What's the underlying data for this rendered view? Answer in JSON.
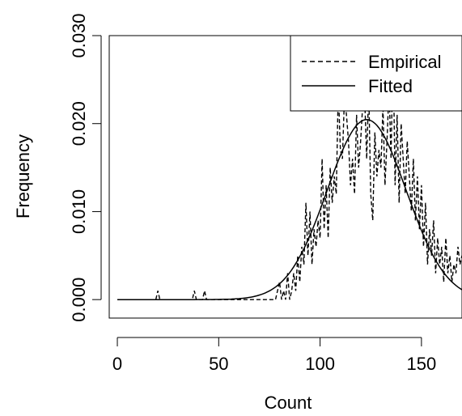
{
  "chart_data": {
    "type": "line",
    "title": "",
    "xlabel": "Count",
    "ylabel": "Frequency",
    "xlim": [
      -4,
      170
    ],
    "ylim": [
      -0.0021,
      0.03
    ],
    "x_ticks": [
      0,
      50,
      100,
      150
    ],
    "x_tick_labels": [
      "0",
      "50",
      "100",
      "150"
    ],
    "y_ticks": [
      0.0,
      0.01,
      0.02,
      0.03
    ],
    "y_tick_labels": [
      "0.000",
      "0.010",
      "0.020",
      "0.030"
    ],
    "grid": false,
    "legend_position": "top-right",
    "series": [
      {
        "name": "Empirical",
        "style": "dashed",
        "x": [
          0,
          19,
          20,
          21,
          37,
          38,
          39,
          42,
          43,
          44,
          78,
          80,
          81,
          82,
          83,
          84,
          85,
          86,
          87,
          88,
          89,
          90,
          91,
          92,
          93,
          94,
          95,
          96,
          97,
          98,
          99,
          100,
          101,
          102,
          103,
          104,
          105,
          106,
          107,
          108,
          109,
          110,
          111,
          112,
          113,
          114,
          115,
          116,
          117,
          118,
          119,
          120,
          121,
          122,
          123,
          124,
          125,
          126,
          127,
          128,
          129,
          130,
          131,
          132,
          133,
          134,
          135,
          136,
          137,
          138,
          139,
          140,
          141,
          142,
          143,
          144,
          145,
          146,
          147,
          148,
          149,
          150,
          151,
          152,
          153,
          154,
          155,
          156,
          157,
          158,
          159,
          160,
          161,
          162,
          163,
          164,
          165,
          166,
          167,
          168,
          169,
          170
        ],
        "y": [
          0,
          0,
          0.001,
          0,
          0,
          0.001,
          0,
          0,
          0.001,
          0,
          0,
          0.002,
          0,
          0.001,
          0,
          0.003,
          0,
          0.001,
          0.003,
          0.001,
          0.005,
          0.002,
          0.006,
          0.004,
          0.011,
          0.005,
          0.01,
          0.004,
          0.008,
          0.006,
          0.009,
          0.007,
          0.016,
          0.008,
          0.013,
          0.007,
          0.015,
          0.011,
          0.014,
          0.012,
          0.024,
          0.017,
          0.016,
          0.023,
          0.021,
          0.018,
          0.013,
          0.016,
          0.012,
          0.021,
          0.015,
          0.018,
          0.022,
          0.023,
          0.016,
          0.024,
          0.012,
          0.009,
          0.019,
          0.014,
          0.017,
          0.015,
          0.022,
          0.013,
          0.018,
          0.024,
          0.016,
          0.029,
          0.013,
          0.021,
          0.011,
          0.02,
          0.016,
          0.012,
          0.018,
          0.014,
          0.01,
          0.016,
          0.009,
          0.014,
          0.008,
          0.013,
          0.006,
          0.011,
          0.004,
          0.008,
          0.005,
          0.009,
          0.003,
          0.007,
          0.004,
          0.006,
          0.002,
          0.007,
          0.003,
          0.005,
          0.002,
          0.004,
          0.003,
          0.006,
          0.004,
          0.005
        ]
      },
      {
        "name": "Fitted",
        "style": "solid",
        "distribution": "normal",
        "mean": 123,
        "sd": 19.5,
        "x_range": [
          0,
          170
        ]
      }
    ]
  }
}
